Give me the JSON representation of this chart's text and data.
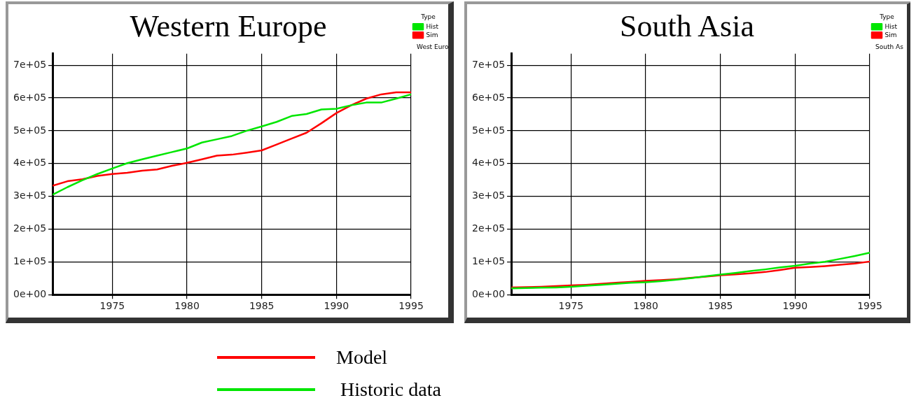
{
  "chart_data": [
    {
      "type": "line",
      "title": "Western Europe",
      "legend_title": "Type",
      "legend": "top right",
      "grid": true,
      "marker": "none",
      "annotations": [
        "West Euro"
      ],
      "x": [
        1971,
        1972,
        1973,
        1974,
        1975,
        1976,
        1977,
        1978,
        1979,
        1980,
        1981,
        1982,
        1983,
        1984,
        1985,
        1986,
        1987,
        1988,
        1989,
        1990,
        1991,
        1992,
        1993,
        1994,
        1995
      ],
      "xlim": [
        1971,
        1995
      ],
      "xticks": [
        1975,
        1980,
        1985,
        1990,
        1995
      ],
      "ylim": [
        0,
        735000
      ],
      "yticks": [
        {
          "value": 0,
          "label": "0e+00"
        },
        {
          "value": 100000,
          "label": "1e+05"
        },
        {
          "value": 200000,
          "label": "2e+05"
        },
        {
          "value": 300000,
          "label": "3e+05"
        },
        {
          "value": 400000,
          "label": "4e+05"
        },
        {
          "value": 500000,
          "label": "5e+05"
        },
        {
          "value": 600000,
          "label": "6e+05"
        },
        {
          "value": 700000,
          "label": "7e+05"
        }
      ],
      "series": [
        {
          "name": "Sim",
          "color": "#ff0000",
          "values": [
            332000,
            346000,
            352000,
            362000,
            368000,
            372000,
            378000,
            382000,
            393000,
            402000,
            413000,
            424000,
            427000,
            433000,
            440000,
            458000,
            476000,
            494000,
            523000,
            554000,
            578000,
            598000,
            611000,
            617000,
            617000
          ]
        },
        {
          "name": "Hist",
          "color": "#00e600",
          "values": [
            305000,
            328000,
            349000,
            368000,
            385000,
            401000,
            413000,
            424000,
            435000,
            446000,
            464000,
            474000,
            484000,
            500000,
            513000,
            527000,
            545000,
            551000,
            565000,
            567000,
            578000,
            586000,
            586000,
            598000,
            611000
          ]
        }
      ]
    },
    {
      "type": "line",
      "title": "South Asia",
      "legend_title": "Type",
      "legend": "top right",
      "grid": true,
      "marker": "none",
      "annotations": [
        "South As"
      ],
      "x": [
        1971,
        1972,
        1973,
        1974,
        1975,
        1976,
        1977,
        1978,
        1979,
        1980,
        1981,
        1982,
        1983,
        1984,
        1985,
        1986,
        1987,
        1988,
        1989,
        1990,
        1991,
        1992,
        1993,
        1994,
        1995
      ],
      "xlim": [
        1971,
        1995
      ],
      "xticks": [
        1975,
        1980,
        1985,
        1990,
        1995
      ],
      "ylim": [
        0,
        735000
      ],
      "yticks": [
        {
          "value": 0,
          "label": "0e+00"
        },
        {
          "value": 100000,
          "label": "1e+05"
        },
        {
          "value": 200000,
          "label": "2e+05"
        },
        {
          "value": 300000,
          "label": "3e+05"
        },
        {
          "value": 400000,
          "label": "4e+05"
        },
        {
          "value": 500000,
          "label": "5e+05"
        },
        {
          "value": 600000,
          "label": "6e+05"
        },
        {
          "value": 700000,
          "label": "7e+05"
        }
      ],
      "series": [
        {
          "name": "Sim",
          "color": "#ff0000",
          "values": [
            22000,
            23000,
            24000,
            26000,
            28000,
            30000,
            33000,
            36000,
            39000,
            42000,
            44000,
            47000,
            51000,
            55000,
            59000,
            62000,
            65000,
            69000,
            75000,
            82000,
            84000,
            87000,
            91000,
            95000,
            101000
          ]
        },
        {
          "name": "Hist",
          "color": "#00e600",
          "values": [
            19000,
            20000,
            21000,
            22000,
            24000,
            27000,
            30000,
            33000,
            36000,
            38000,
            41000,
            45000,
            50000,
            56000,
            61000,
            66000,
            72000,
            77000,
            83000,
            88000,
            95000,
            100000,
            109000,
            118000,
            128000
          ]
        }
      ]
    },
    {
      "type": "other",
      "categories": [
        "Model",
        "Historic data"
      ],
      "colors": [
        "#ff0000",
        "#00e600"
      ]
    }
  ]
}
